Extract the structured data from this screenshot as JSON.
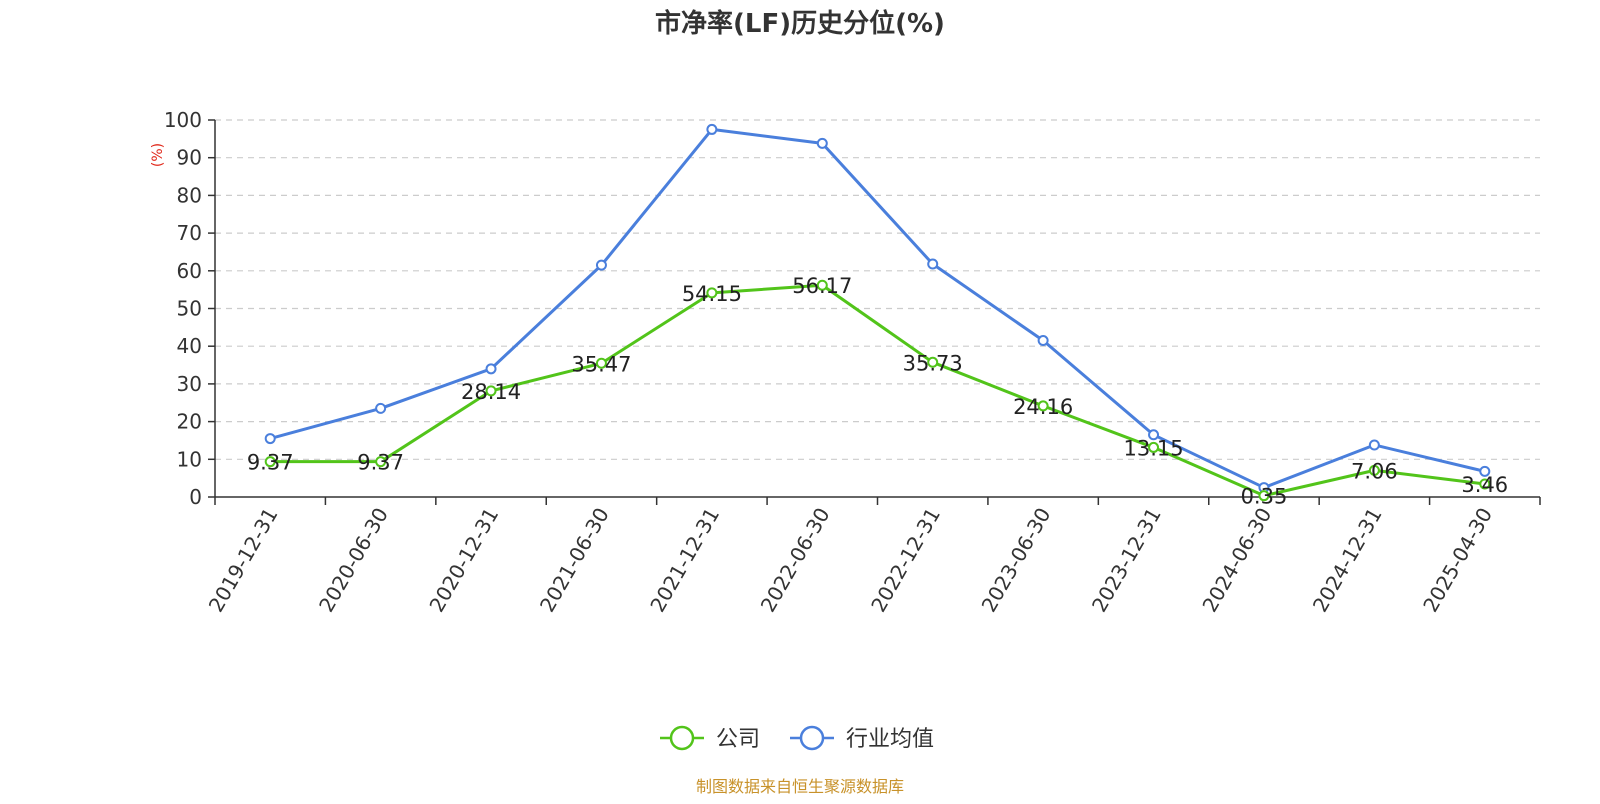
{
  "chart_data": {
    "type": "line",
    "title": "市净率(LF)历史分位(%)",
    "ylabel": "(%)",
    "xlabel": "",
    "categories": [
      "2019-12-31",
      "2020-06-30",
      "2020-12-31",
      "2021-06-30",
      "2021-12-31",
      "2022-06-30",
      "2022-12-31",
      "2023-06-30",
      "2023-12-31",
      "2024-06-30",
      "2024-12-31",
      "2025-04-30"
    ],
    "ylim": [
      0,
      100
    ],
    "yticks": [
      0,
      10,
      20,
      30,
      40,
      50,
      60,
      70,
      80,
      90,
      100
    ],
    "grid": true,
    "legend_position": "bottom",
    "series": [
      {
        "name": "公司",
        "color": "#52c41a",
        "values": [
          9.37,
          9.37,
          28.14,
          35.47,
          54.15,
          56.17,
          35.73,
          24.16,
          13.15,
          0.35,
          7.06,
          3.46
        ],
        "labels": [
          "9.37",
          "9.37",
          "28.14",
          "35.47",
          "54.15",
          "56.17",
          "35.73",
          "24.16",
          "13.15",
          "0.35",
          "7.06",
          "3.46"
        ],
        "show_labels": true
      },
      {
        "name": "行业均值",
        "color": "#4a7fdc",
        "values": [
          15.5,
          23.5,
          34,
          61.5,
          97.5,
          93.8,
          61.8,
          41.5,
          16.5,
          2.5,
          13.8,
          6.8
        ],
        "show_labels": false
      }
    ]
  },
  "source": "制图数据来自恒生聚源数据库"
}
